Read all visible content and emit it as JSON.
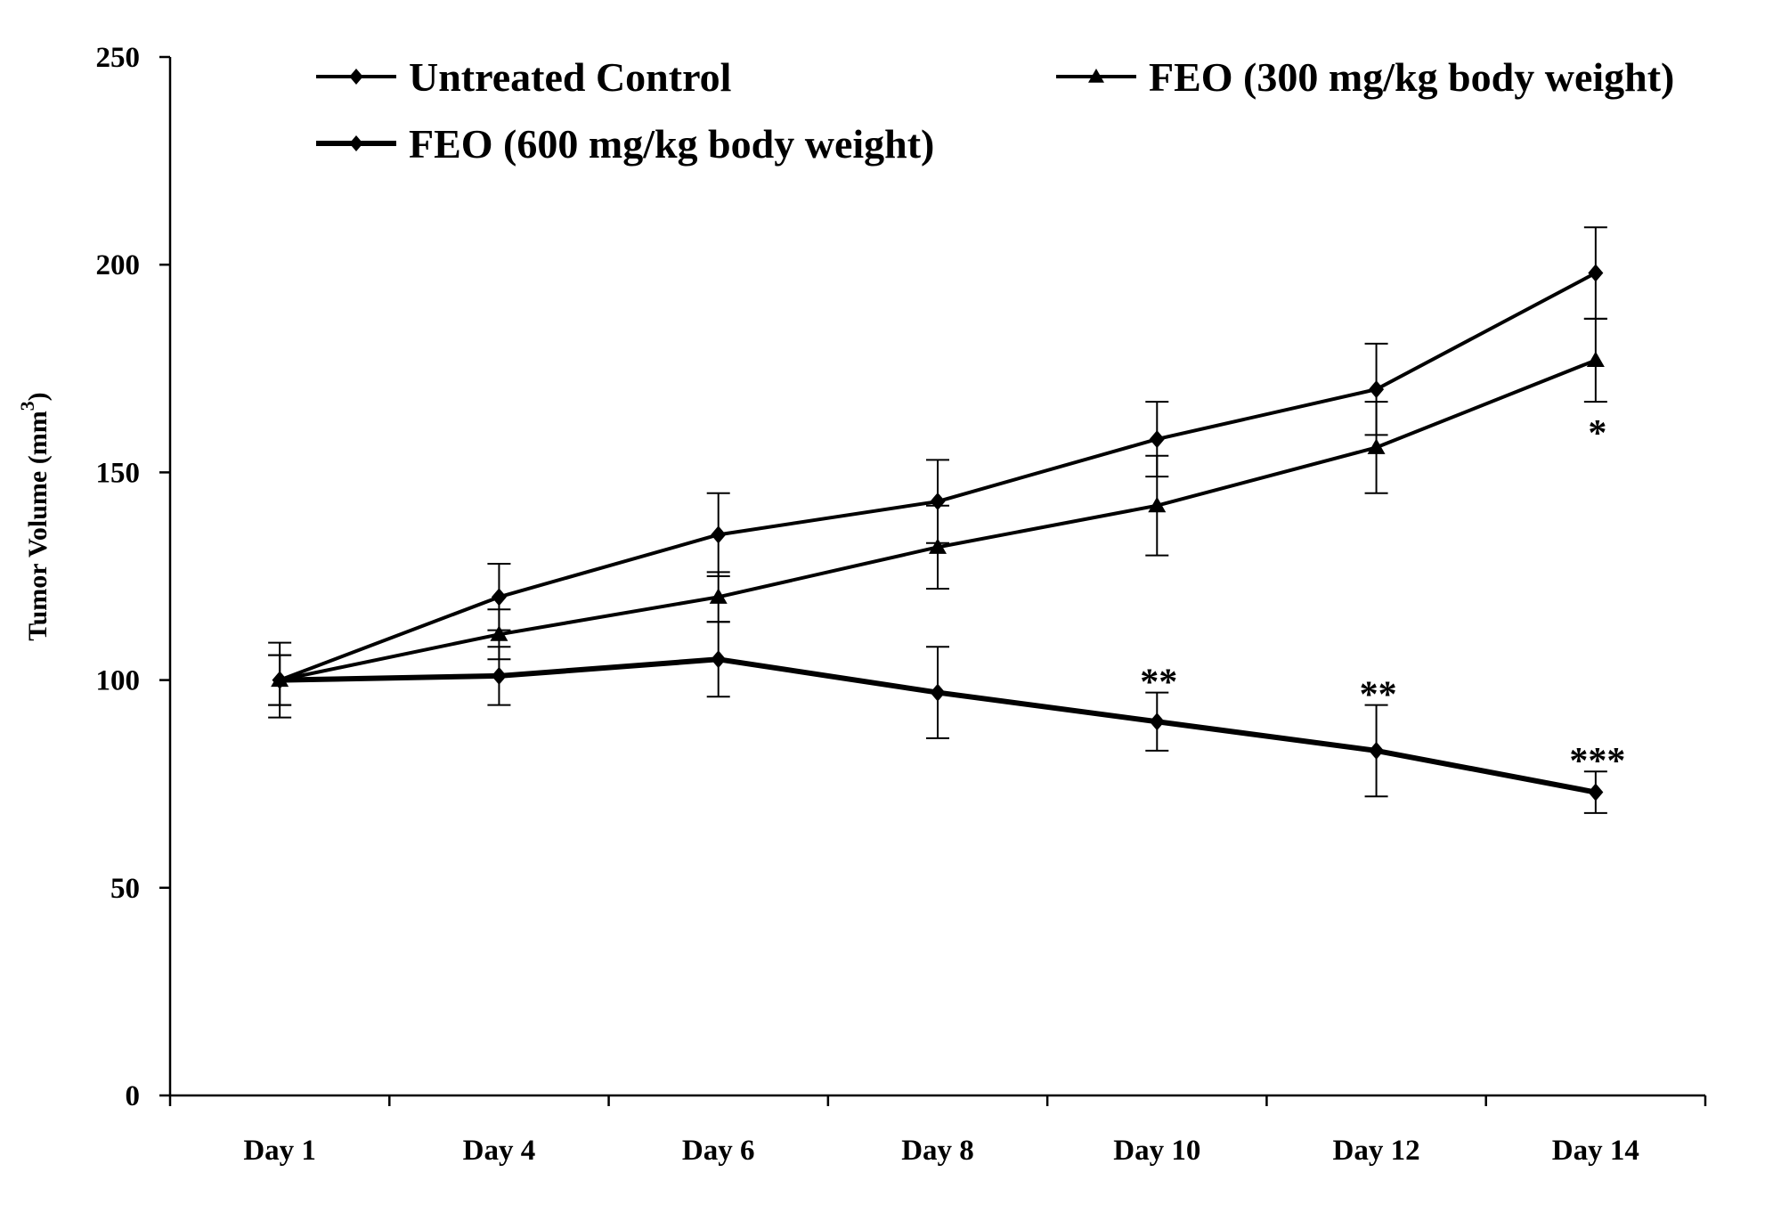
{
  "chart_data": {
    "type": "line",
    "title": "",
    "xlabel": "",
    "ylabel": "Tumor Volume (mm",
    "ylabel_superscript": "3",
    "ylabel_close": ")",
    "categories": [
      "Day 1",
      "Day 4",
      "Day 6",
      "Day 8",
      "Day 10",
      "Day 12",
      "Day 14"
    ],
    "ylim": [
      0,
      250
    ],
    "yticks": [
      0,
      50,
      100,
      150,
      200,
      250
    ],
    "grid": false,
    "legend_position": "top",
    "series": [
      {
        "name": "Untreated Control",
        "marker": "diamond",
        "values": [
          100,
          120,
          135,
          143,
          158,
          170,
          198
        ],
        "errors": [
          9,
          8,
          10,
          10,
          9,
          11,
          11
        ]
      },
      {
        "name": "FEO (300 mg/kg body weight)",
        "marker": "triangle",
        "values": [
          100,
          111,
          120,
          132,
          142,
          156,
          177
        ],
        "errors": [
          6,
          6,
          6,
          10,
          12,
          11,
          10
        ]
      },
      {
        "name": "FEO (600 mg/kg body weight)",
        "marker": "diamond",
        "values": [
          100,
          101,
          105,
          97,
          90,
          83,
          73
        ],
        "errors": [
          6,
          7,
          9,
          11,
          7,
          11,
          5
        ]
      }
    ],
    "annotations": [
      {
        "text": "*",
        "category": "Day 14",
        "y": 163
      },
      {
        "text": "**",
        "category": "Day 10",
        "y": 103
      },
      {
        "text": "**",
        "category": "Day 12",
        "y": 100
      },
      {
        "text": "***",
        "category": "Day 14",
        "y": 84
      }
    ]
  }
}
